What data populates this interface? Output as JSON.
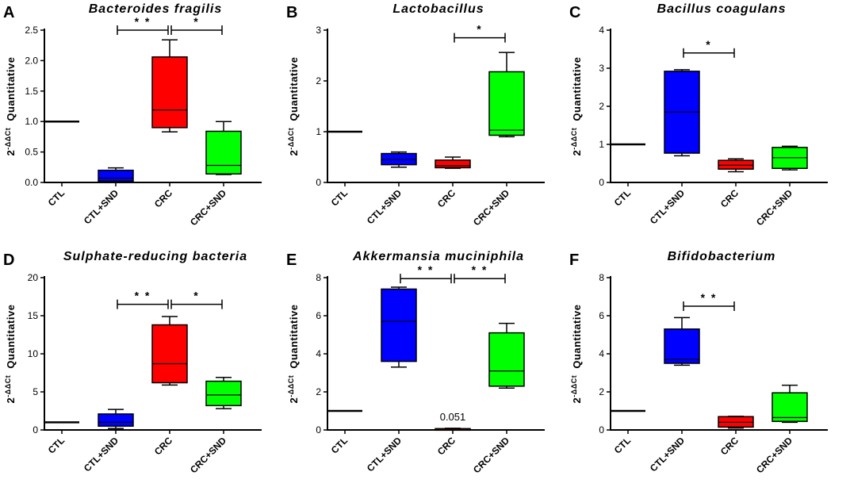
{
  "figure": {
    "ylabel": {
      "base": "2",
      "sup": "-ΔΔCt",
      "text": "Quantitative"
    },
    "colors": {
      "CTL": "#000000",
      "CTL+SND": "#0000ff",
      "CRC": "#ff0000",
      "CRC+SND": "#00ff00"
    }
  },
  "chart_data": [
    {
      "panel": "A",
      "title": "Bacteroides fragilis",
      "type": "box",
      "categories": [
        "CTL",
        "CTL+SND",
        "CRC",
        "CRC+SND"
      ],
      "ylim": [
        0,
        2.5
      ],
      "yticks": [
        "0.0",
        "0.5",
        "1.0",
        "1.5",
        "2.0",
        "2.5"
      ],
      "ytick_values": [
        0,
        0.5,
        1.0,
        1.5,
        2.0,
        2.5
      ],
      "boxes": [
        {
          "min": 1.0,
          "q1": 1.0,
          "median": 1.0,
          "q3": 1.0,
          "max": 1.0
        },
        {
          "min": 0.0,
          "q1": 0.02,
          "median": 0.07,
          "q3": 0.2,
          "max": 0.24
        },
        {
          "min": 0.83,
          "q1": 0.9,
          "median": 1.19,
          "q3": 2.06,
          "max": 2.34
        },
        {
          "min": 0.13,
          "q1": 0.14,
          "median": 0.28,
          "q3": 0.84,
          "max": 1.0
        }
      ],
      "significance": [
        {
          "from": 1,
          "to": 2,
          "y": 2.5,
          "label": "* *"
        },
        {
          "from": 2,
          "to": 3,
          "y": 2.5,
          "label": "*"
        }
      ],
      "annotations": []
    },
    {
      "panel": "B",
      "title": "Lactobacillus",
      "type": "box",
      "categories": [
        "CTL",
        "CTL+SND",
        "CRC",
        "CRC+SND"
      ],
      "ylim": [
        0,
        3
      ],
      "yticks": [
        "0",
        "1",
        "2",
        "3"
      ],
      "ytick_values": [
        0,
        1,
        2,
        3
      ],
      "boxes": [
        {
          "min": 1.0,
          "q1": 1.0,
          "median": 1.0,
          "q3": 1.0,
          "max": 1.0
        },
        {
          "min": 0.3,
          "q1": 0.35,
          "median": 0.45,
          "q3": 0.57,
          "max": 0.6
        },
        {
          "min": 0.28,
          "q1": 0.29,
          "median": 0.33,
          "q3": 0.44,
          "max": 0.5
        },
        {
          "min": 0.9,
          "q1": 0.93,
          "median": 1.03,
          "q3": 2.18,
          "max": 2.56
        }
      ],
      "significance": [
        {
          "from": 2,
          "to": 3,
          "y": 2.85,
          "label": "*"
        }
      ],
      "annotations": []
    },
    {
      "panel": "C",
      "title": "Bacillus coagulans",
      "type": "box",
      "categories": [
        "CTL",
        "CTL+SND",
        "CRC",
        "CRC+SND"
      ],
      "ylim": [
        0,
        4
      ],
      "yticks": [
        "0",
        "1",
        "2",
        "3",
        "4"
      ],
      "ytick_values": [
        0,
        1,
        2,
        3,
        4
      ],
      "boxes": [
        {
          "min": 1.0,
          "q1": 1.0,
          "median": 1.0,
          "q3": 1.0,
          "max": 1.0
        },
        {
          "min": 0.7,
          "q1": 0.77,
          "median": 1.85,
          "q3": 2.92,
          "max": 2.96
        },
        {
          "min": 0.28,
          "q1": 0.35,
          "median": 0.45,
          "q3": 0.58,
          "max": 0.62
        },
        {
          "min": 0.33,
          "q1": 0.37,
          "median": 0.65,
          "q3": 0.92,
          "max": 0.95
        }
      ],
      "significance": [
        {
          "from": 1,
          "to": 2,
          "y": 3.4,
          "label": "*"
        }
      ],
      "annotations": []
    },
    {
      "panel": "D",
      "title": "Sulphate-reducing bacteria",
      "type": "box",
      "categories": [
        "CTL",
        "CTL+SND",
        "CRC",
        "CRC+SND"
      ],
      "ylim": [
        0,
        20
      ],
      "yticks": [
        "0",
        "5",
        "10",
        "15",
        "20"
      ],
      "ytick_values": [
        0,
        5,
        10,
        15,
        20
      ],
      "boxes": [
        {
          "min": 1.0,
          "q1": 1.0,
          "median": 1.0,
          "q3": 1.0,
          "max": 1.0
        },
        {
          "min": 0.2,
          "q1": 0.5,
          "median": 1.0,
          "q3": 2.1,
          "max": 2.7
        },
        {
          "min": 5.9,
          "q1": 6.2,
          "median": 8.7,
          "q3": 13.8,
          "max": 14.9
        },
        {
          "min": 2.8,
          "q1": 3.2,
          "median": 4.6,
          "q3": 6.4,
          "max": 6.9
        }
      ],
      "significance": [
        {
          "from": 1,
          "to": 2,
          "y": 16.5,
          "label": "* *"
        },
        {
          "from": 2,
          "to": 3,
          "y": 16.5,
          "label": "*"
        }
      ],
      "annotations": []
    },
    {
      "panel": "E",
      "title": "Akkermansia muciniphila",
      "type": "box",
      "categories": [
        "CTL",
        "CTL+SND",
        "CRC",
        "CRC+SND"
      ],
      "ylim": [
        0,
        8
      ],
      "yticks": [
        "0",
        "2",
        "4",
        "6",
        "8"
      ],
      "ytick_values": [
        0,
        2,
        4,
        6,
        8
      ],
      "boxes": [
        {
          "min": 1.0,
          "q1": 1.0,
          "median": 1.0,
          "q3": 1.0,
          "max": 1.0
        },
        {
          "min": 3.3,
          "q1": 3.6,
          "median": 5.7,
          "q3": 7.4,
          "max": 7.5
        },
        {
          "min": 0.02,
          "q1": 0.03,
          "median": 0.05,
          "q3": 0.07,
          "max": 0.09
        },
        {
          "min": 2.2,
          "q1": 2.3,
          "median": 3.1,
          "q3": 5.1,
          "max": 5.6
        }
      ],
      "significance": [
        {
          "from": 1,
          "to": 2,
          "y": 7.95,
          "label": "* *"
        },
        {
          "from": 2,
          "to": 3,
          "y": 7.95,
          "label": "* *"
        }
      ],
      "annotations": [
        {
          "category": 2,
          "y": 0.5,
          "text": "0.051"
        }
      ]
    },
    {
      "panel": "F",
      "title": "Bifidobacterium",
      "type": "box",
      "categories": [
        "CTL",
        "CTL+SND",
        "CRC",
        "CRC+SND"
      ],
      "ylim": [
        0,
        8
      ],
      "yticks": [
        "0",
        "2",
        "4",
        "6",
        "8"
      ],
      "ytick_values": [
        0,
        2,
        4,
        6,
        8
      ],
      "boxes": [
        {
          "min": 1.0,
          "q1": 1.0,
          "median": 1.0,
          "q3": 1.0,
          "max": 1.0
        },
        {
          "min": 3.4,
          "q1": 3.5,
          "median": 3.7,
          "q3": 5.3,
          "max": 5.9
        },
        {
          "min": 0.1,
          "q1": 0.15,
          "median": 0.4,
          "q3": 0.7,
          "max": 0.72
        },
        {
          "min": 0.4,
          "q1": 0.45,
          "median": 0.65,
          "q3": 1.95,
          "max": 2.35
        }
      ],
      "significance": [
        {
          "from": 1,
          "to": 2,
          "y": 6.5,
          "label": "* *"
        }
      ],
      "annotations": []
    }
  ]
}
